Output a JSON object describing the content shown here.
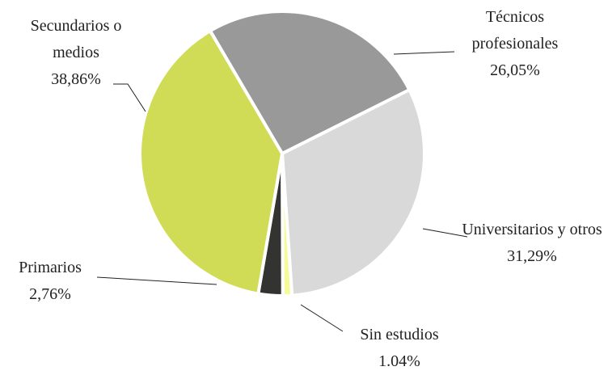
{
  "chart_data": {
    "type": "pie",
    "categories": [
      "Técnicos profesionales",
      "Universitarios y otros",
      "Sin estudios",
      "Primarios",
      "Secundarios o medios"
    ],
    "values": [
      26.05,
      31.29,
      1.04,
      2.76,
      38.86
    ],
    "value_labels": [
      "26,05%",
      "31,29%",
      "1.04%",
      "2,76%",
      "38,86%"
    ],
    "colors": [
      "#999999",
      "#d9d9d9",
      "#f4fb99",
      "#333331",
      "#d0dc55"
    ]
  }
}
